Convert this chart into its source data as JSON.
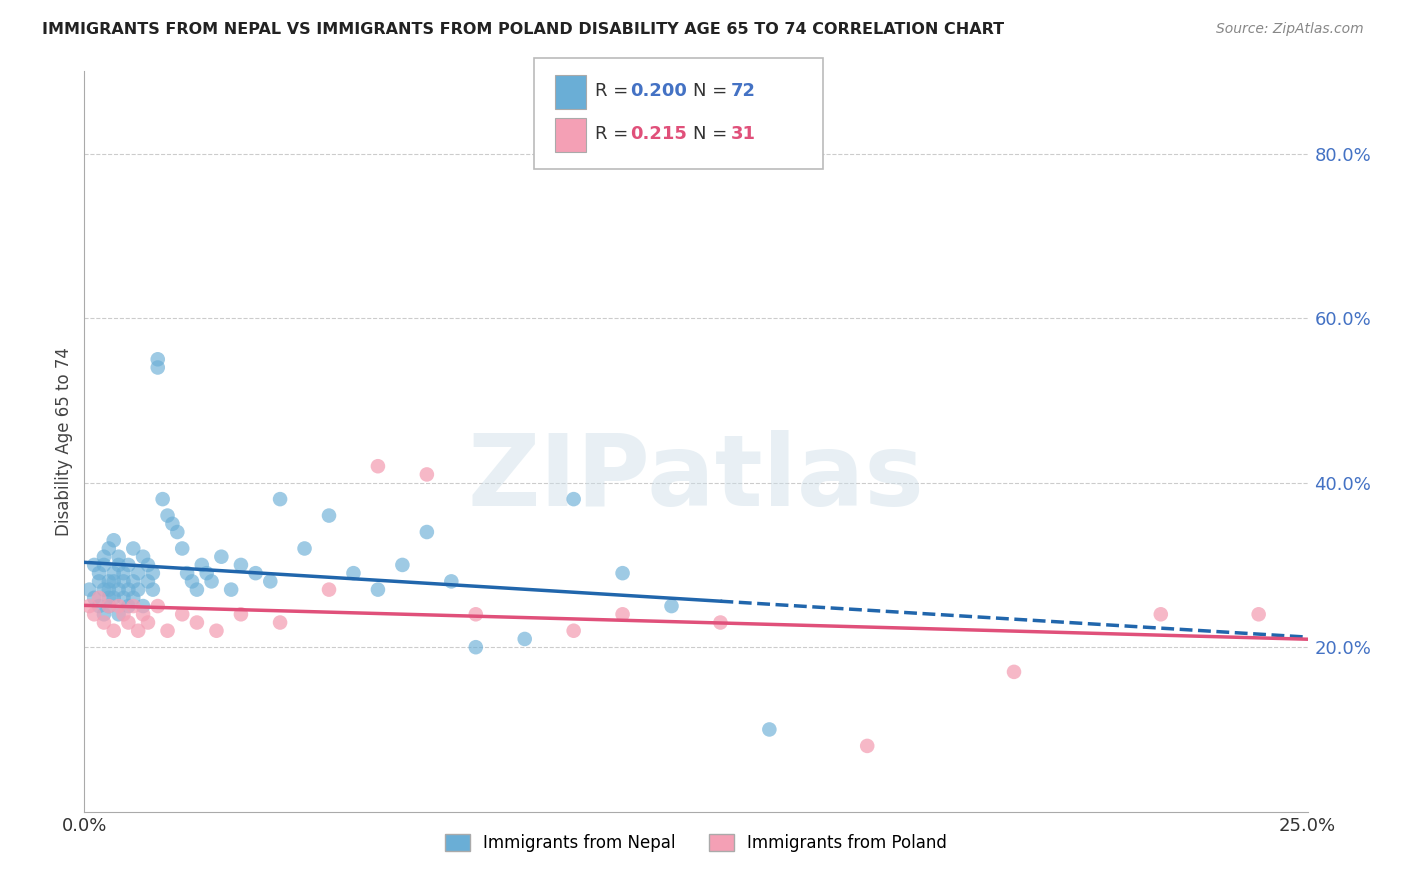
{
  "title": "IMMIGRANTS FROM NEPAL VS IMMIGRANTS FROM POLAND DISABILITY AGE 65 TO 74 CORRELATION CHART",
  "source": "Source: ZipAtlas.com",
  "ylabel": "Disability Age 65 to 74",
  "ylabel_right_ticks": [
    "80.0%",
    "60.0%",
    "40.0%",
    "20.0%"
  ],
  "ylabel_right_vals": [
    0.8,
    0.6,
    0.4,
    0.2
  ],
  "x_min": 0.0,
  "x_max": 0.25,
  "y_min": 0.0,
  "y_max": 0.9,
  "nepal_color": "#6aaed6",
  "poland_color": "#f4a0b5",
  "nepal_line_color": "#2166ac",
  "poland_line_color": "#e0507a",
  "nepal_R": "0.200",
  "nepal_N": "72",
  "poland_R": "0.215",
  "poland_N": "31",
  "nepal_scatter_x": [
    0.001,
    0.002,
    0.002,
    0.003,
    0.003,
    0.003,
    0.004,
    0.004,
    0.004,
    0.004,
    0.005,
    0.005,
    0.005,
    0.005,
    0.005,
    0.006,
    0.006,
    0.006,
    0.006,
    0.007,
    0.007,
    0.007,
    0.007,
    0.008,
    0.008,
    0.008,
    0.009,
    0.009,
    0.009,
    0.01,
    0.01,
    0.01,
    0.011,
    0.011,
    0.012,
    0.012,
    0.013,
    0.013,
    0.014,
    0.014,
    0.015,
    0.015,
    0.016,
    0.017,
    0.018,
    0.019,
    0.02,
    0.021,
    0.022,
    0.023,
    0.024,
    0.025,
    0.026,
    0.028,
    0.03,
    0.032,
    0.035,
    0.038,
    0.04,
    0.045,
    0.05,
    0.055,
    0.06,
    0.065,
    0.07,
    0.075,
    0.08,
    0.09,
    0.1,
    0.11,
    0.12,
    0.14
  ],
  "nepal_scatter_y": [
    0.27,
    0.3,
    0.26,
    0.29,
    0.25,
    0.28,
    0.31,
    0.27,
    0.24,
    0.3,
    0.28,
    0.26,
    0.32,
    0.25,
    0.27,
    0.29,
    0.33,
    0.26,
    0.28,
    0.3,
    0.27,
    0.24,
    0.31,
    0.28,
    0.26,
    0.29,
    0.3,
    0.25,
    0.27,
    0.28,
    0.32,
    0.26,
    0.29,
    0.27,
    0.31,
    0.25,
    0.28,
    0.3,
    0.27,
    0.29,
    0.54,
    0.55,
    0.38,
    0.36,
    0.35,
    0.34,
    0.32,
    0.29,
    0.28,
    0.27,
    0.3,
    0.29,
    0.28,
    0.31,
    0.27,
    0.3,
    0.29,
    0.28,
    0.38,
    0.32,
    0.36,
    0.29,
    0.27,
    0.3,
    0.34,
    0.28,
    0.2,
    0.21,
    0.38,
    0.29,
    0.25,
    0.1
  ],
  "poland_scatter_x": [
    0.001,
    0.002,
    0.003,
    0.004,
    0.005,
    0.006,
    0.007,
    0.008,
    0.009,
    0.01,
    0.011,
    0.012,
    0.013,
    0.015,
    0.017,
    0.02,
    0.023,
    0.027,
    0.032,
    0.04,
    0.05,
    0.06,
    0.07,
    0.08,
    0.1,
    0.11,
    0.13,
    0.16,
    0.19,
    0.22,
    0.24
  ],
  "poland_scatter_y": [
    0.25,
    0.24,
    0.26,
    0.23,
    0.25,
    0.22,
    0.25,
    0.24,
    0.23,
    0.25,
    0.22,
    0.24,
    0.23,
    0.25,
    0.22,
    0.24,
    0.23,
    0.22,
    0.24,
    0.23,
    0.27,
    0.42,
    0.41,
    0.24,
    0.22,
    0.24,
    0.23,
    0.08,
    0.17,
    0.24,
    0.24
  ],
  "nepal_line_solid_end": 0.13,
  "watermark_text": "ZIPatlas",
  "legend_nepal_label": "Immigrants from Nepal",
  "legend_poland_label": "Immigrants from Poland"
}
